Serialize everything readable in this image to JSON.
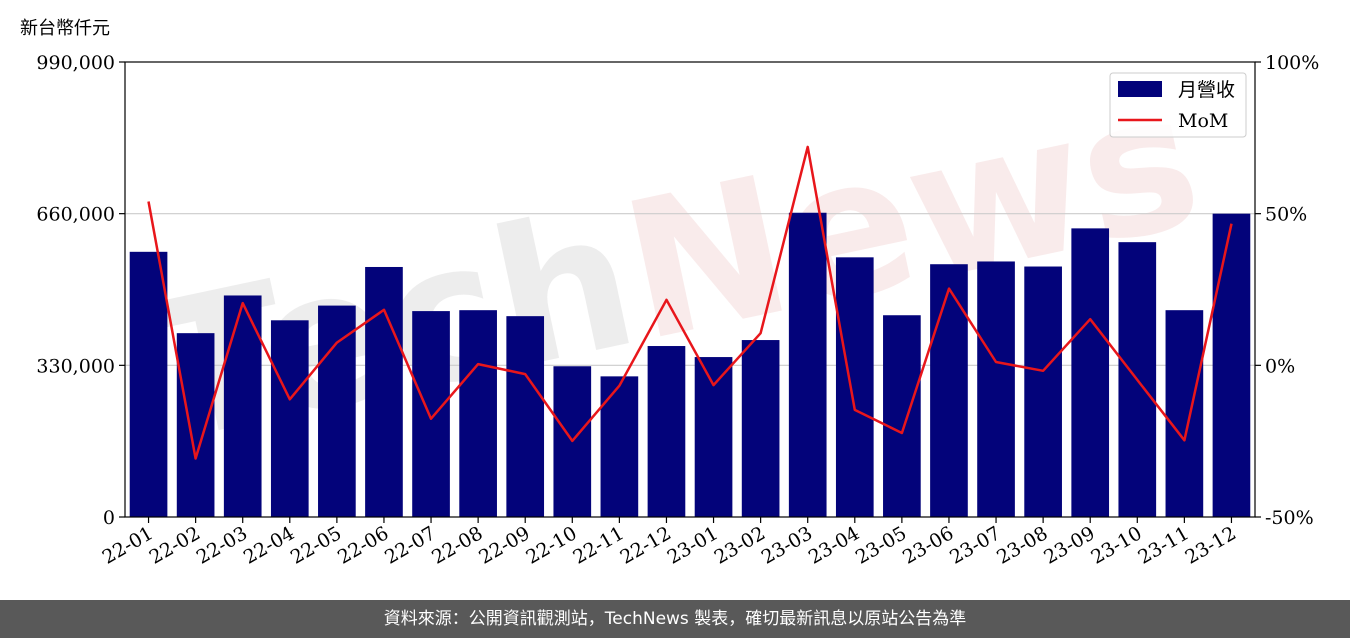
{
  "colors": {
    "bar": "#03037A",
    "line": "#E8161B",
    "grid": "#CCCCCC",
    "watermark_gray": "#E3E3E3",
    "watermark_red": "#F6E0E0",
    "footer_bg": "#595959"
  },
  "watermark": "TechNews",
  "footer_text": "資料來源：公開資訊觀測站，TechNews 製表，確切最新訊息以原站公告為準",
  "chart_data": {
    "type": "bar",
    "ylabel": "新台幣仟元",
    "categories": [
      "22-01",
      "22-02",
      "22-03",
      "22-04",
      "22-05",
      "22-06",
      "22-07",
      "22-08",
      "22-09",
      "22-10",
      "22-11",
      "22-12",
      "23-01",
      "23-02",
      "23-03",
      "23-04",
      "23-05",
      "23-06",
      "23-07",
      "23-08",
      "23-09",
      "23-10",
      "23-11",
      "23-12"
    ],
    "series": [
      {
        "name": "月營收",
        "type": "bar",
        "axis": "left",
        "values": [
          577000,
          400000,
          482000,
          428000,
          460000,
          544000,
          448000,
          450000,
          437000,
          328000,
          306000,
          372000,
          348000,
          385000,
          662000,
          565000,
          439000,
          550000,
          556000,
          545000,
          628000,
          598000,
          450000,
          660000
        ]
      },
      {
        "name": "MoM",
        "type": "line",
        "axis": "right",
        "values": [
          54,
          -30.7,
          20.5,
          -11.2,
          7.5,
          18.3,
          -17.6,
          0.4,
          -2.9,
          -24.9,
          -6.7,
          21.6,
          -6.5,
          10.6,
          72.0,
          -14.7,
          -22.3,
          25.3,
          1.1,
          -1.8,
          15.2,
          -4.8,
          -24.7,
          46.7
        ]
      }
    ],
    "yleft": {
      "min": 0,
      "max": 990000,
      "ticks": [
        0,
        330000,
        660000,
        990000
      ],
      "tick_labels": [
        "0",
        "330,000",
        "660,000",
        "990,000"
      ]
    },
    "yright": {
      "min": -50,
      "max": 100,
      "ticks": [
        -50,
        0,
        50,
        100
      ],
      "tick_labels": [
        "-50%",
        "0%",
        "50%",
        "100%"
      ]
    },
    "grid": "horizontal",
    "legend": "top-right"
  }
}
